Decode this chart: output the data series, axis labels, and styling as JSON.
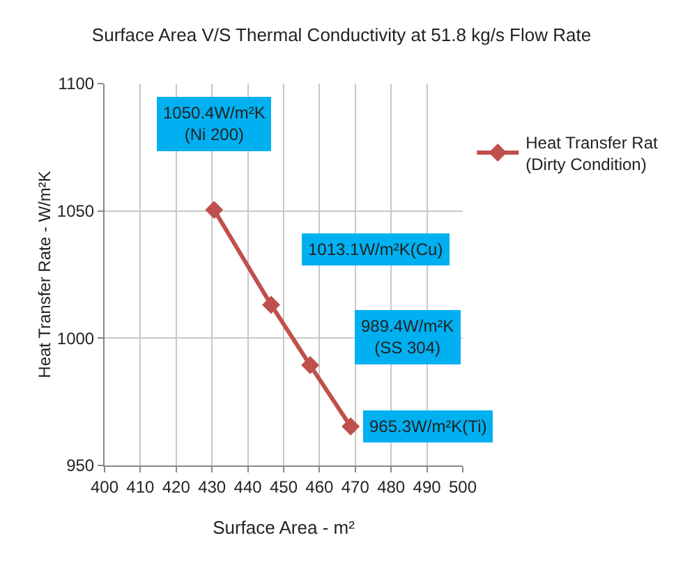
{
  "chart_data": {
    "type": "line",
    "title": "Surface Area V/S Thermal Conductivity at 51.8 kg/s Flow Rate",
    "xlabel": "Surface Area - m²",
    "ylabel": "Heat Transfer Rate - W/m²K",
    "x": [
      430.6,
      446.5,
      457.4,
      468.7
    ],
    "series": [
      {
        "name": "Heat Transfer Rat\n(Dirty Condition)",
        "color": "#c0504d",
        "values": [
          1050.4,
          1013.1,
          989.4,
          965.3
        ]
      }
    ],
    "xlim": [
      400,
      500
    ],
    "xticks": [
      400,
      410,
      420,
      430,
      440,
      450,
      460,
      470,
      480,
      490,
      500
    ],
    "ylim": [
      950,
      1100
    ],
    "yticks": [
      950,
      1000,
      1050,
      1100
    ],
    "grid": true,
    "legend": "right",
    "marker": "diamond",
    "line_style": "solid",
    "annotations": [
      "1050.4W/m²K\n(Ni 200)",
      "1013.1W/m²K(Cu)",
      "989.4W/m²K\n(SS 304)",
      "965.3W/m²K(Ti)"
    ]
  }
}
